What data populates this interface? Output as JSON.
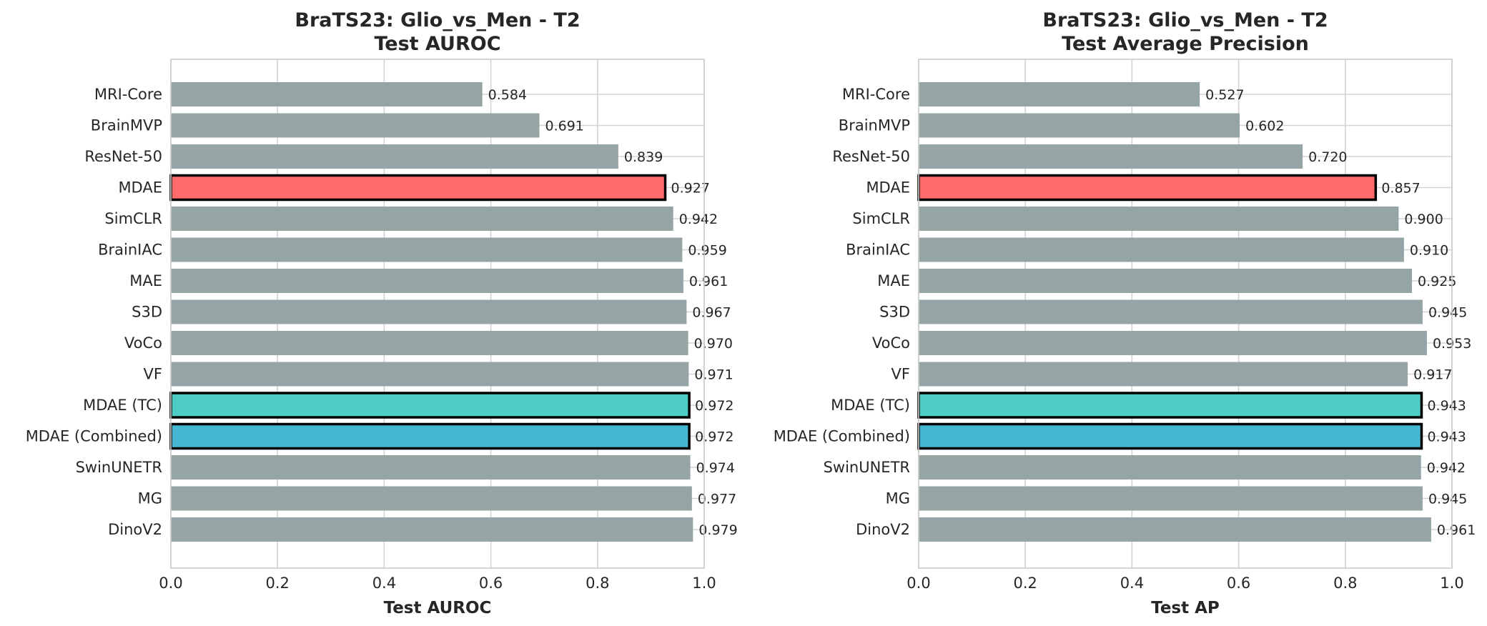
{
  "chart_data": [
    {
      "type": "bar",
      "orientation": "horizontal",
      "title": "BraTS23: Glio_vs_Men - T2",
      "subtitle": "Test AUROC",
      "xlabel": "Test AUROC",
      "xlim": [
        0.0,
        1.0
      ],
      "xticks": [
        "0.0",
        "0.2",
        "0.4",
        "0.6",
        "0.8",
        "1.0"
      ],
      "grid": true,
      "categories": [
        "MRI-Core",
        "BrainMVP",
        "ResNet-50",
        "MDAE",
        "SimCLR",
        "BrainIAC",
        "MAE",
        "S3D",
        "VoCo",
        "VF",
        "MDAE (TC)",
        "MDAE (Combined)",
        "SwinUNETR",
        "MG",
        "DinoV2"
      ],
      "values": [
        0.584,
        0.691,
        0.839,
        0.927,
        0.942,
        0.959,
        0.961,
        0.967,
        0.97,
        0.971,
        0.972,
        0.972,
        0.974,
        0.977,
        0.979
      ],
      "value_labels": [
        "0.584",
        "0.691",
        "0.839",
        "0.927",
        "0.942",
        "0.959",
        "0.961",
        "0.967",
        "0.970",
        "0.971",
        "0.972",
        "0.972",
        "0.974",
        "0.977",
        "0.979"
      ],
      "colors": [
        "#95a5a6",
        "#95a5a6",
        "#95a5a6",
        "#ff6b6b",
        "#95a5a6",
        "#95a5a6",
        "#95a5a6",
        "#95a5a6",
        "#95a5a6",
        "#95a5a6",
        "#4ecdc4",
        "#45b7d1",
        "#95a5a6",
        "#95a5a6",
        "#95a5a6"
      ],
      "highlighted": [
        false,
        false,
        false,
        true,
        false,
        false,
        false,
        false,
        false,
        false,
        true,
        true,
        false,
        false,
        false
      ]
    },
    {
      "type": "bar",
      "orientation": "horizontal",
      "title": "BraTS23: Glio_vs_Men - T2",
      "subtitle": "Test Average Precision",
      "xlabel": "Test AP",
      "xlim": [
        0.0,
        1.0
      ],
      "xticks": [
        "0.0",
        "0.2",
        "0.4",
        "0.6",
        "0.8",
        "1.0"
      ],
      "grid": true,
      "categories": [
        "MRI-Core",
        "BrainMVP",
        "ResNet-50",
        "MDAE",
        "SimCLR",
        "BrainIAC",
        "MAE",
        "S3D",
        "VoCo",
        "VF",
        "MDAE (TC)",
        "MDAE (Combined)",
        "SwinUNETR",
        "MG",
        "DinoV2"
      ],
      "values": [
        0.527,
        0.602,
        0.72,
        0.857,
        0.9,
        0.91,
        0.925,
        0.945,
        0.953,
        0.917,
        0.943,
        0.943,
        0.942,
        0.945,
        0.961
      ],
      "value_labels": [
        "0.527",
        "0.602",
        "0.720",
        "0.857",
        "0.900",
        "0.910",
        "0.925",
        "0.945",
        "0.953",
        "0.917",
        "0.943",
        "0.943",
        "0.942",
        "0.945",
        "0.961"
      ],
      "colors": [
        "#95a5a6",
        "#95a5a6",
        "#95a5a6",
        "#ff6b6b",
        "#95a5a6",
        "#95a5a6",
        "#95a5a6",
        "#95a5a6",
        "#95a5a6",
        "#95a5a6",
        "#4ecdc4",
        "#45b7d1",
        "#95a5a6",
        "#95a5a6",
        "#95a5a6"
      ],
      "highlighted": [
        false,
        false,
        false,
        true,
        false,
        false,
        false,
        false,
        false,
        false,
        true,
        true,
        false,
        false,
        false
      ]
    }
  ]
}
